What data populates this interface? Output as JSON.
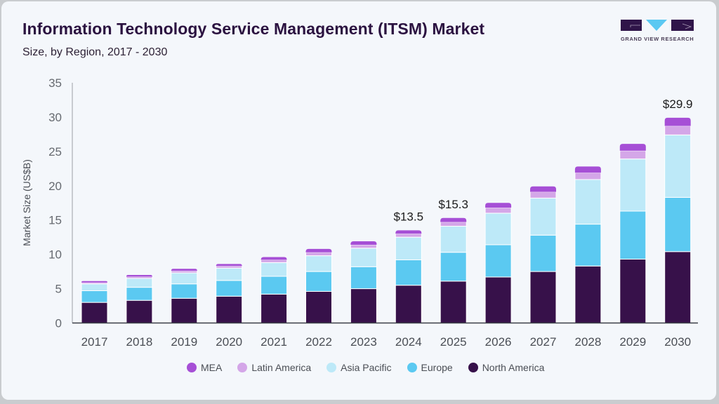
{
  "header": {
    "title": "Information Technology Service Management (ITSM) Market",
    "subtitle": "Size, by Region, 2017 - 2030"
  },
  "brand": {
    "logo_text": "GRAND VIEW RESEARCH",
    "colors": {
      "dark": "#2f1449",
      "accent": "#5bc8f2"
    }
  },
  "chart_data": {
    "type": "bar",
    "stacked": true,
    "title": "Information Technology Service Management (ITSM) Market",
    "subtitle": "Size, by Region, 2017 - 2030",
    "xlabel": "",
    "ylabel": "Market Size (US$B)",
    "ylim": [
      0,
      35
    ],
    "yticks": [
      0,
      5,
      10,
      15,
      20,
      25,
      30,
      35
    ],
    "grid": false,
    "legend_position": "bottom",
    "categories": [
      "2017",
      "2018",
      "2019",
      "2020",
      "2021",
      "2022",
      "2023",
      "2024",
      "2025",
      "2026",
      "2027",
      "2028",
      "2029",
      "2030"
    ],
    "series": [
      {
        "name": "North America",
        "color": "#37114a",
        "values": [
          3.0,
          3.3,
          3.6,
          3.9,
          4.2,
          4.6,
          5.0,
          5.5,
          6.1,
          6.7,
          7.5,
          8.3,
          9.3,
          10.4
        ]
      },
      {
        "name": "Europe",
        "color": "#5bc9f1",
        "values": [
          1.7,
          1.9,
          2.1,
          2.3,
          2.6,
          2.9,
          3.2,
          3.7,
          4.2,
          4.7,
          5.3,
          6.1,
          7.0,
          7.9
        ]
      },
      {
        "name": "Asia Pacific",
        "color": "#bde9f8",
        "values": [
          1.0,
          1.3,
          1.6,
          1.8,
          2.0,
          2.3,
          2.7,
          3.3,
          3.8,
          4.6,
          5.4,
          6.5,
          7.6,
          9.1
        ]
      },
      {
        "name": "Latin America",
        "color": "#d4a6e8",
        "values": [
          0.2,
          0.25,
          0.3,
          0.3,
          0.4,
          0.5,
          0.5,
          0.5,
          0.6,
          0.8,
          0.9,
          1.0,
          1.2,
          1.3
        ]
      },
      {
        "name": "MEA",
        "color": "#a64fd6",
        "values": [
          0.2,
          0.25,
          0.3,
          0.3,
          0.4,
          0.5,
          0.5,
          0.5,
          0.6,
          0.7,
          0.8,
          0.9,
          1.0,
          1.2
        ]
      }
    ],
    "annotations": [
      {
        "category": "2024",
        "text": "$13.5",
        "value": 13.5
      },
      {
        "category": "2025",
        "text": "$15.3",
        "value": 15.3
      },
      {
        "category": "2030",
        "text": "$29.9",
        "value": 29.9
      }
    ],
    "legend_order": [
      "MEA",
      "Latin America",
      "Asia Pacific",
      "Europe",
      "North America"
    ]
  }
}
